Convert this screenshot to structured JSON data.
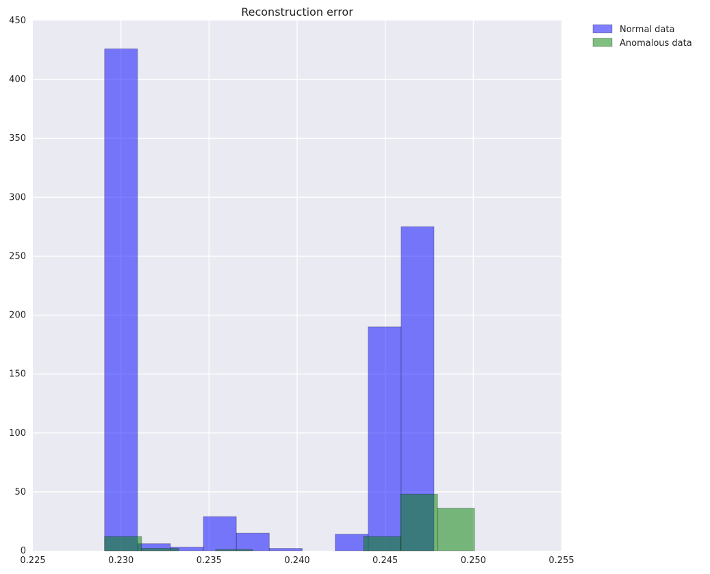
{
  "chart_data": {
    "type": "bar",
    "title": "Reconstruction error",
    "xlabel": "",
    "ylabel": "",
    "xlim": [
      0.225,
      0.255
    ],
    "ylim": [
      0,
      450
    ],
    "xticks": [
      "0.225",
      "0.230",
      "0.235",
      "0.240",
      "0.245",
      "0.250",
      "0.255"
    ],
    "yticks": [
      "0",
      "50",
      "100",
      "150",
      "200",
      "250",
      "300",
      "350",
      "400",
      "450"
    ],
    "grid": true,
    "legend_position": "outside top-right",
    "series": [
      {
        "name": "Normal data",
        "color": "#0000ff",
        "bins": [
          {
            "x0": 0.22907,
            "x1": 0.23094,
            "count": 426
          },
          {
            "x0": 0.23094,
            "x1": 0.23281,
            "count": 6
          },
          {
            "x0": 0.23281,
            "x1": 0.23468,
            "count": 3
          },
          {
            "x0": 0.23468,
            "x1": 0.23655,
            "count": 29
          },
          {
            "x0": 0.23655,
            "x1": 0.23842,
            "count": 15
          },
          {
            "x0": 0.23842,
            "x1": 0.24029,
            "count": 2
          },
          {
            "x0": 0.24029,
            "x1": 0.24216,
            "count": 0
          },
          {
            "x0": 0.24216,
            "x1": 0.24403,
            "count": 14
          },
          {
            "x0": 0.24403,
            "x1": 0.2459,
            "count": 190
          },
          {
            "x0": 0.2459,
            "x1": 0.24777,
            "count": 275
          }
        ]
      },
      {
        "name": "Anomalous data",
        "color": "#008000",
        "bins": [
          {
            "x0": 0.22907,
            "x1": 0.23117,
            "count": 12
          },
          {
            "x0": 0.23117,
            "x1": 0.23327,
            "count": 2
          },
          {
            "x0": 0.23327,
            "x1": 0.23537,
            "count": 0
          },
          {
            "x0": 0.23537,
            "x1": 0.23747,
            "count": 1
          },
          {
            "x0": 0.23747,
            "x1": 0.23957,
            "count": 0
          },
          {
            "x0": 0.23957,
            "x1": 0.24167,
            "count": 0
          },
          {
            "x0": 0.24167,
            "x1": 0.24377,
            "count": 0
          },
          {
            "x0": 0.24377,
            "x1": 0.24587,
            "count": 12
          },
          {
            "x0": 0.24587,
            "x1": 0.24797,
            "count": 48
          },
          {
            "x0": 0.24797,
            "x1": 0.25007,
            "count": 36
          }
        ]
      }
    ]
  }
}
